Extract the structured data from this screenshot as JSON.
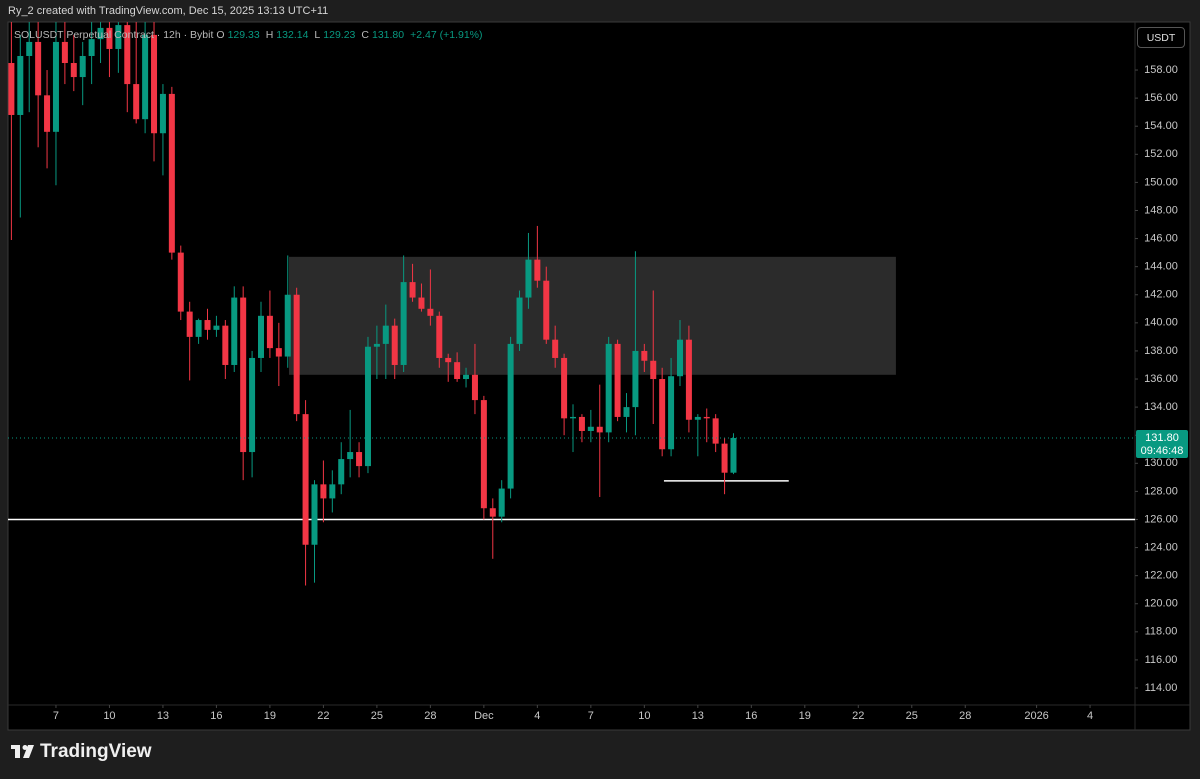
{
  "header": "Ry_2 created with TradingView.com, Dec 15, 2025 13:13 UTC+11",
  "currency_button": "USDT",
  "brand": "TradingView",
  "chart_data": {
    "type": "candlestick",
    "title": "SOLUSDT Perpetual Contract · 12h · Bybit",
    "ohlc_legend": [
      {
        "key": "O",
        "value": "129.33"
      },
      {
        "key": "H",
        "value": "132.14"
      },
      {
        "key": "L",
        "value": "129.23"
      },
      {
        "key": "C",
        "value": "131.80"
      }
    ],
    "change": "+2.47 (+1.91%)",
    "up_color": "#089981",
    "down_color": "#f23645",
    "x": [
      4.5,
      5,
      5.5,
      6,
      6.5,
      7,
      7.5,
      8,
      8.5,
      9,
      9.5,
      10,
      10.5,
      11,
      11.5,
      12,
      12.5,
      13,
      13.5,
      14,
      14.5,
      15,
      15.5,
      16,
      16.5,
      17,
      17.5,
      18,
      18.5,
      19,
      19.5,
      20,
      20.5,
      21,
      21.5,
      22,
      22.5,
      23,
      23.5,
      24,
      24.5,
      25,
      25.5,
      26,
      26.5,
      27,
      27.5,
      28,
      28.5,
      29,
      29.5,
      30,
      30.5,
      31,
      31.5,
      32,
      32.5,
      33,
      33.5,
      34,
      34.5,
      35,
      35.5,
      36,
      36.5,
      37,
      37.5,
      38,
      38.5,
      39,
      39.5,
      40,
      40.5,
      41,
      41.5,
      42,
      42.5,
      43,
      43.5,
      44,
      44.5,
      45
    ],
    "open": [
      158.5,
      154.8,
      159.0,
      160.0,
      156.2,
      153.6,
      160.0,
      158.5,
      157.5,
      159.0,
      160.2,
      161.0,
      159.5,
      161.2,
      157.0,
      154.5,
      160.5,
      153.5,
      156.3,
      145.0,
      140.8,
      139.0,
      140.2,
      139.5,
      139.8,
      137.0,
      141.8,
      130.8,
      137.5,
      140.5,
      138.2,
      137.6,
      142.0,
      133.5,
      124.2,
      128.5,
      127.5,
      128.5,
      130.3,
      130.8,
      129.8,
      138.3,
      138.5,
      139.8,
      137.0,
      142.9,
      141.8,
      141.0,
      140.5,
      137.5,
      137.2,
      136.0,
      136.3,
      134.5,
      126.8,
      126.2,
      128.2,
      138.5,
      141.8,
      144.5,
      143.0,
      138.8,
      137.5,
      133.2,
      133.3,
      132.3,
      132.6,
      132.2,
      138.5,
      133.3,
      134.0,
      138.0,
      137.3,
      136.0,
      131.0,
      136.2,
      138.8,
      133.1,
      133.3,
      133.2,
      131.4,
      129.33
    ],
    "high": [
      161.5,
      160.5,
      161.5,
      161.5,
      158.0,
      161.5,
      161.5,
      160.5,
      160.0,
      161.5,
      161.5,
      161.5,
      161.5,
      161.5,
      161.5,
      161.5,
      161.5,
      157.0,
      156.8,
      145.5,
      141.5,
      140.3,
      141.0,
      140.5,
      140.2,
      142.6,
      142.6,
      138.0,
      141.5,
      142.3,
      140.0,
      144.8,
      142.5,
      134.5,
      128.8,
      130.2,
      129.5,
      131.5,
      133.8,
      131.5,
      139.0,
      139.8,
      141.3,
      140.3,
      144.8,
      144.2,
      142.8,
      143.8,
      140.8,
      137.8,
      137.9,
      136.8,
      138.5,
      134.8,
      127.5,
      128.8,
      139.0,
      142.3,
      146.4,
      146.9,
      144.0,
      139.8,
      137.8,
      134.2,
      133.5,
      133.8,
      135.6,
      139.0,
      138.8,
      135.0,
      145.1,
      138.5,
      142.3,
      136.8,
      137.5,
      140.2,
      139.8,
      133.5,
      133.9,
      133.5,
      131.8,
      132.14
    ],
    "low": [
      145.9,
      147.5,
      155.0,
      152.5,
      151.0,
      149.8,
      157.0,
      156.5,
      155.5,
      157.0,
      158.5,
      157.5,
      157.8,
      155.0,
      154.2,
      153.5,
      151.5,
      150.5,
      144.5,
      140.2,
      135.9,
      138.5,
      138.8,
      139.0,
      136.0,
      136.5,
      128.8,
      129.0,
      136.5,
      137.5,
      135.5,
      136.8,
      133.0,
      121.3,
      121.5,
      125.8,
      126.5,
      127.8,
      129.0,
      129.0,
      129.3,
      136.0,
      136.0,
      136.0,
      136.5,
      141.5,
      140.8,
      139.8,
      136.8,
      135.8,
      135.8,
      135.4,
      133.5,
      126.0,
      123.2,
      125.8,
      127.5,
      138.0,
      141.0,
      142.5,
      138.5,
      136.8,
      132.0,
      130.8,
      131.5,
      131.5,
      127.6,
      131.5,
      133.0,
      132.2,
      132.0,
      136.5,
      132.8,
      130.5,
      130.5,
      135.5,
      132.2,
      130.5,
      131.5,
      130.8,
      127.8,
      129.23
    ],
    "close": [
      154.8,
      159.0,
      160.0,
      156.2,
      153.6,
      160.0,
      158.5,
      157.5,
      159.0,
      160.2,
      161.0,
      159.5,
      161.2,
      157.0,
      154.5,
      160.5,
      153.5,
      156.3,
      145.0,
      140.8,
      139.0,
      140.2,
      139.5,
      139.8,
      137.0,
      141.8,
      130.8,
      137.5,
      140.5,
      138.2,
      137.6,
      142.0,
      133.5,
      124.2,
      128.5,
      127.5,
      128.5,
      130.3,
      130.8,
      129.8,
      138.3,
      138.5,
      139.8,
      137.0,
      142.9,
      141.8,
      141.0,
      140.5,
      137.5,
      137.2,
      136.0,
      136.3,
      134.5,
      126.8,
      126.2,
      128.2,
      138.5,
      141.8,
      144.5,
      143.0,
      138.8,
      137.5,
      133.2,
      133.3,
      132.3,
      132.6,
      132.2,
      138.5,
      133.3,
      134.0,
      138.0,
      137.3,
      136.0,
      131.0,
      136.2,
      138.8,
      133.1,
      133.3,
      133.2,
      131.4,
      129.33,
      131.8
    ],
    "last_price_label": "131.80",
    "countdown": "09:46:48",
    "zone": {
      "x": [
        20.07,
        54.11
      ],
      "y": [
        136.3,
        144.7
      ],
      "color": "#2b2b2b"
    },
    "support_line": {
      "value": 126,
      "color": "#ffffff"
    },
    "short_line": {
      "x": [
        41.1,
        48.1
      ],
      "value": 128.75,
      "color": "#ffffff"
    },
    "xlim": [
      4.31,
      67.52
    ],
    "ylim": [
      112.79,
      161.42
    ],
    "xticks": [
      7,
      10,
      13,
      16,
      19,
      22,
      25,
      28,
      {
        "value": 31,
        "label": "Dec"
      },
      {
        "value": 34,
        "label": "4"
      },
      {
        "value": 37,
        "label": "7"
      },
      {
        "value": 40,
        "label": "10"
      },
      {
        "value": 43,
        "label": "13"
      },
      {
        "value": 46,
        "label": "16"
      },
      {
        "value": 49,
        "label": "19"
      },
      {
        "value": 52,
        "label": "22"
      },
      {
        "value": 55,
        "label": "25"
      },
      {
        "value": 58,
        "label": "28"
      },
      {
        "value": 62,
        "label": "2026"
      },
      {
        "value": 65,
        "label": "4"
      }
    ],
    "yticks": [
      {
        "value": 114,
        "label": "114.00"
      },
      {
        "value": 116,
        "label": "116.00"
      },
      {
        "value": 118,
        "label": "118.00"
      },
      {
        "value": 120,
        "label": "120.00"
      },
      {
        "value": 122,
        "label": "122.00"
      },
      {
        "value": 124,
        "label": "124.00"
      },
      {
        "value": 126,
        "label": "126.00"
      },
      {
        "value": 128,
        "label": "128.00"
      },
      {
        "value": 130,
        "label": "130.00"
      },
      {
        "value": 132,
        "label": "132.00"
      },
      {
        "value": 134,
        "label": "134.00"
      },
      {
        "value": 136,
        "label": "136.00"
      },
      {
        "value": 138,
        "label": "138.00"
      },
      {
        "value": 140,
        "label": "140.00"
      },
      {
        "value": 142,
        "label": "142.00"
      },
      {
        "value": 144,
        "label": "144.00"
      },
      {
        "value": 146,
        "label": "146.00"
      },
      {
        "value": 148,
        "label": "148.00"
      },
      {
        "value": 150,
        "label": "150.00"
      },
      {
        "value": 152,
        "label": "152.00"
      },
      {
        "value": 154,
        "label": "154.00"
      },
      {
        "value": 156,
        "label": "156.00"
      },
      {
        "value": 158,
        "label": "158.00"
      }
    ],
    "grid": false
  }
}
